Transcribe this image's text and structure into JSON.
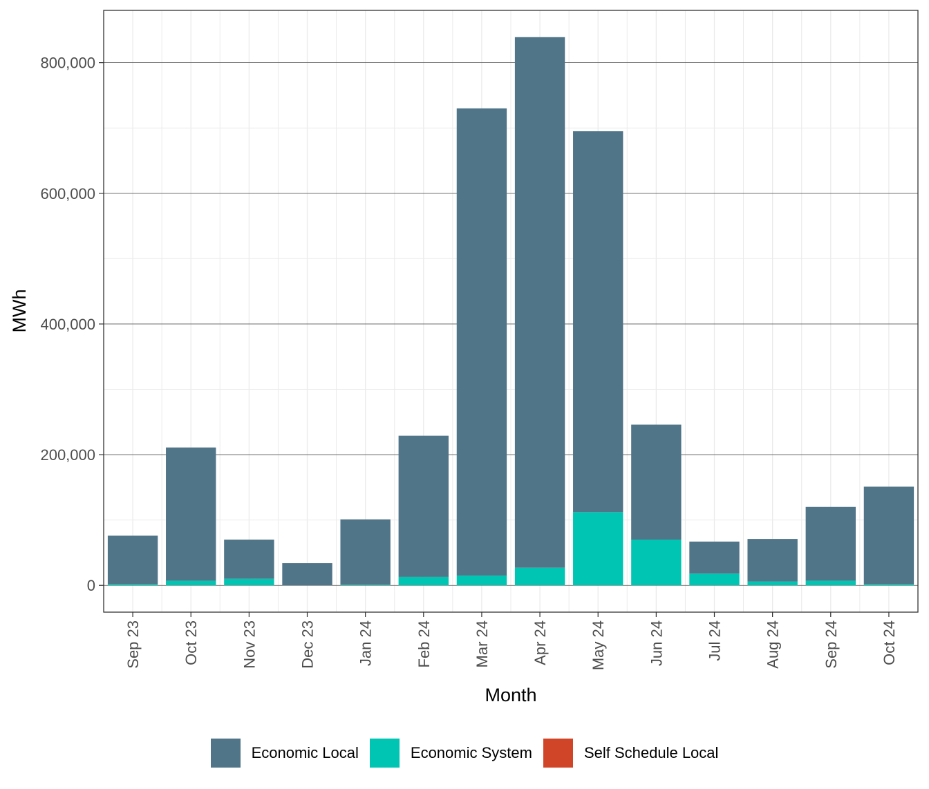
{
  "chart_data": {
    "type": "bar",
    "stacked": true,
    "xlabel": "Month",
    "ylabel": "MWh",
    "ylim": [
      -41000,
      880000
    ],
    "y_ticks": [
      0,
      200000,
      400000,
      600000,
      800000
    ],
    "y_tick_labels": [
      "0",
      "200,000",
      "400,000",
      "600,000",
      "800,000"
    ],
    "categories": [
      "Sep 23",
      "Oct 23",
      "Nov 23",
      "Dec 23",
      "Jan 24",
      "Feb 24",
      "Mar 24",
      "Apr 24",
      "May 24",
      "Jun 24",
      "Jul 24",
      "Aug 24",
      "Sep 24",
      "Oct 24"
    ],
    "series": [
      {
        "name": "Self Schedule Local",
        "color": "#D04527",
        "values": [
          0,
          0,
          0,
          0,
          0,
          0,
          0,
          0,
          0,
          0,
          0,
          0,
          0,
          0
        ]
      },
      {
        "name": "Economic System",
        "color": "#00C5B3",
        "values": [
          2000,
          7000,
          10000,
          0,
          1000,
          13000,
          15000,
          27000,
          112000,
          70000,
          18000,
          6000,
          7000,
          2000
        ]
      },
      {
        "name": "Economic Local",
        "color": "#507588",
        "values": [
          74000,
          204000,
          60000,
          34000,
          100000,
          216000,
          715000,
          812000,
          583000,
          176000,
          49000,
          65000,
          113000,
          149000
        ]
      }
    ],
    "legend_position": "bottom",
    "grid": true
  },
  "legend": [
    {
      "label": "Economic Local",
      "color": "#507588"
    },
    {
      "label": "Economic System",
      "color": "#00C5B3"
    },
    {
      "label": "Self Schedule Local",
      "color": "#D04527"
    }
  ]
}
